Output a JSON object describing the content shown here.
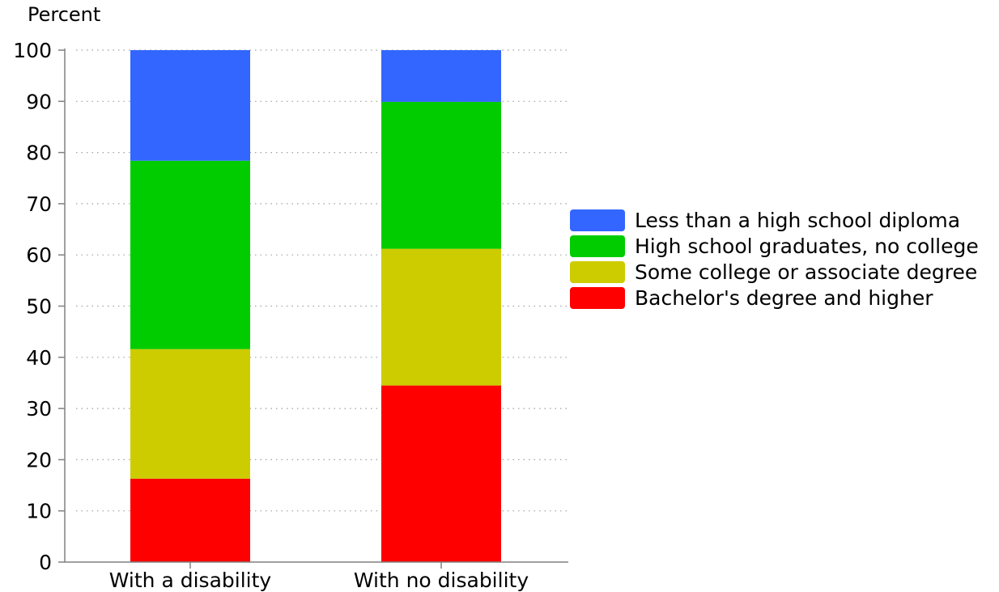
{
  "chart_data": {
    "type": "bar",
    "stacked": true,
    "ylabel": "Percent",
    "ylim": [
      0,
      100
    ],
    "yticks": [
      0,
      10,
      20,
      30,
      40,
      50,
      60,
      70,
      80,
      90,
      100
    ],
    "grid": true,
    "legend_position": "right",
    "categories": [
      "With a disability",
      "With no disability"
    ],
    "series": [
      {
        "name": "Bachelor's degree and higher",
        "color": "#ff0000",
        "values": [
          16.3,
          34.5
        ]
      },
      {
        "name": "Some college or associate degree",
        "color": "#cccc00",
        "values": [
          25.3,
          26.7
        ]
      },
      {
        "name": "High school graduates, no college",
        "color": "#00cc00",
        "values": [
          36.8,
          28.7
        ]
      },
      {
        "name": "Less than a high school diploma",
        "color": "#3366ff",
        "values": [
          21.6,
          10.1
        ]
      }
    ],
    "legend_order": [
      3,
      2,
      1,
      0
    ]
  }
}
